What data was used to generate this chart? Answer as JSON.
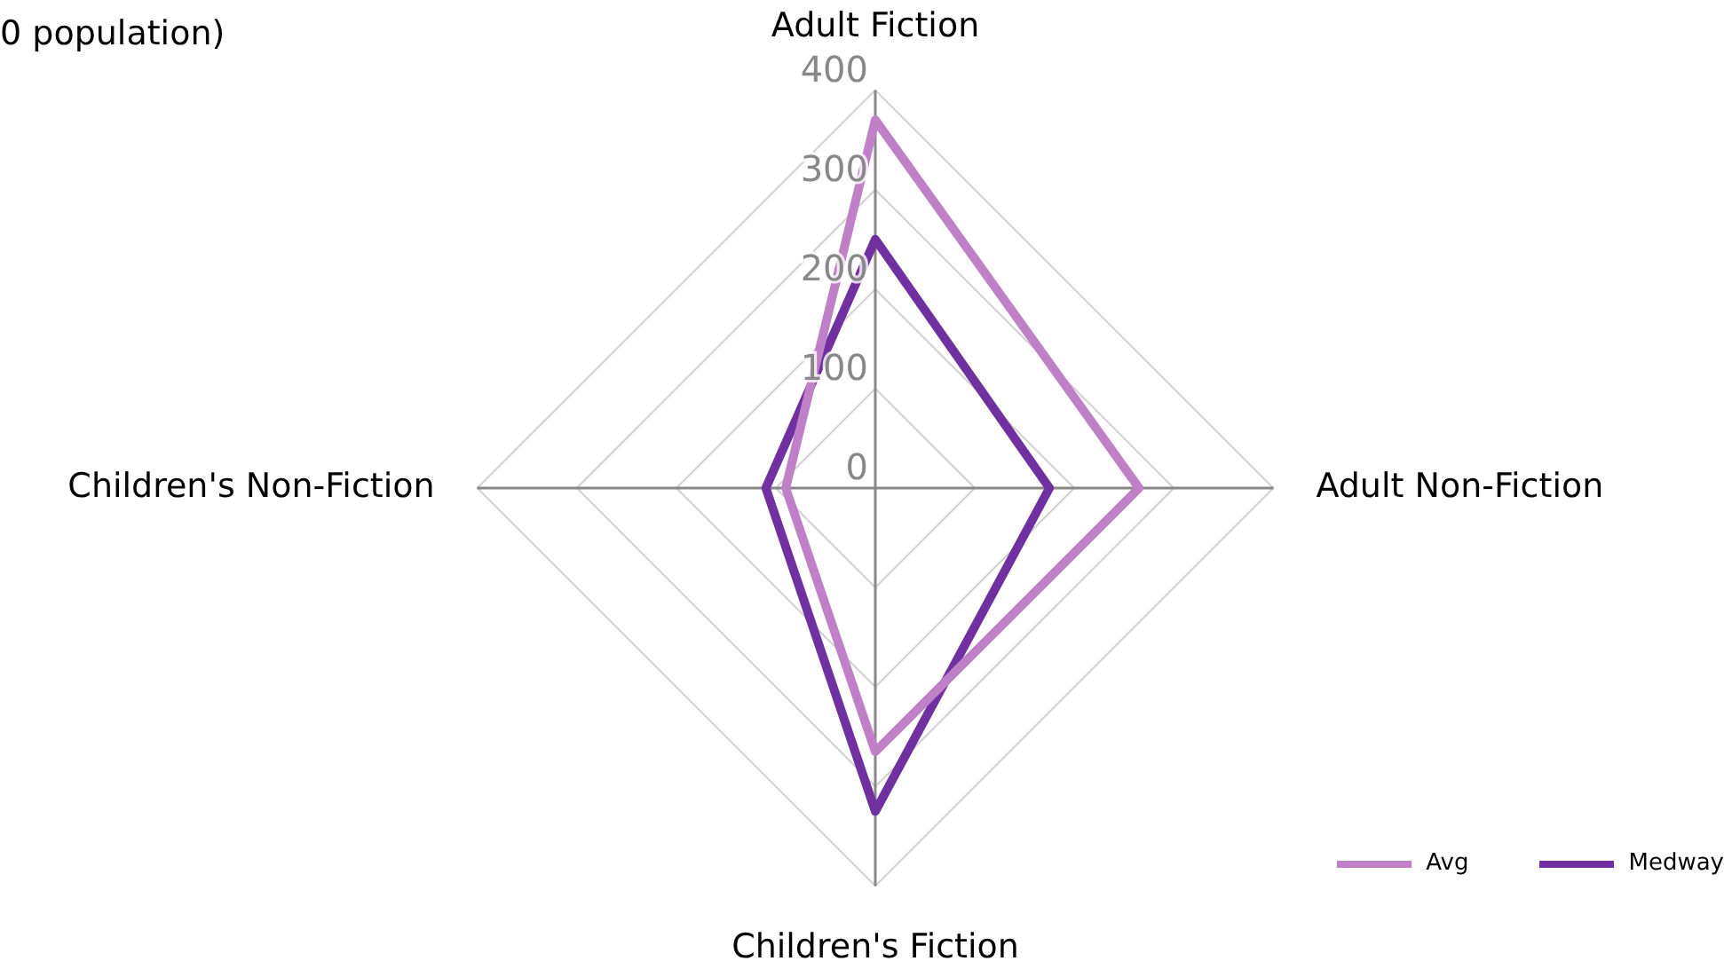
{
  "chart_data": {
    "type": "radar",
    "title": "0 population)",
    "categories": [
      "Adult Fiction",
      "Adult Non-Fiction",
      "Children's Fiction",
      "Children's Non-Fiction"
    ],
    "series": [
      {
        "name": "Avg",
        "color": "#c080c8",
        "values": [
          370,
          265,
          265,
          90
        ]
      },
      {
        "name": "Medway",
        "color": "#7030a0",
        "values": [
          250,
          175,
          325,
          110
        ]
      }
    ],
    "ylim": [
      0,
      400
    ],
    "yticks": [
      0,
      100,
      200,
      300,
      400
    ],
    "grid": true,
    "legend": "bottom right",
    "marker": "none"
  }
}
